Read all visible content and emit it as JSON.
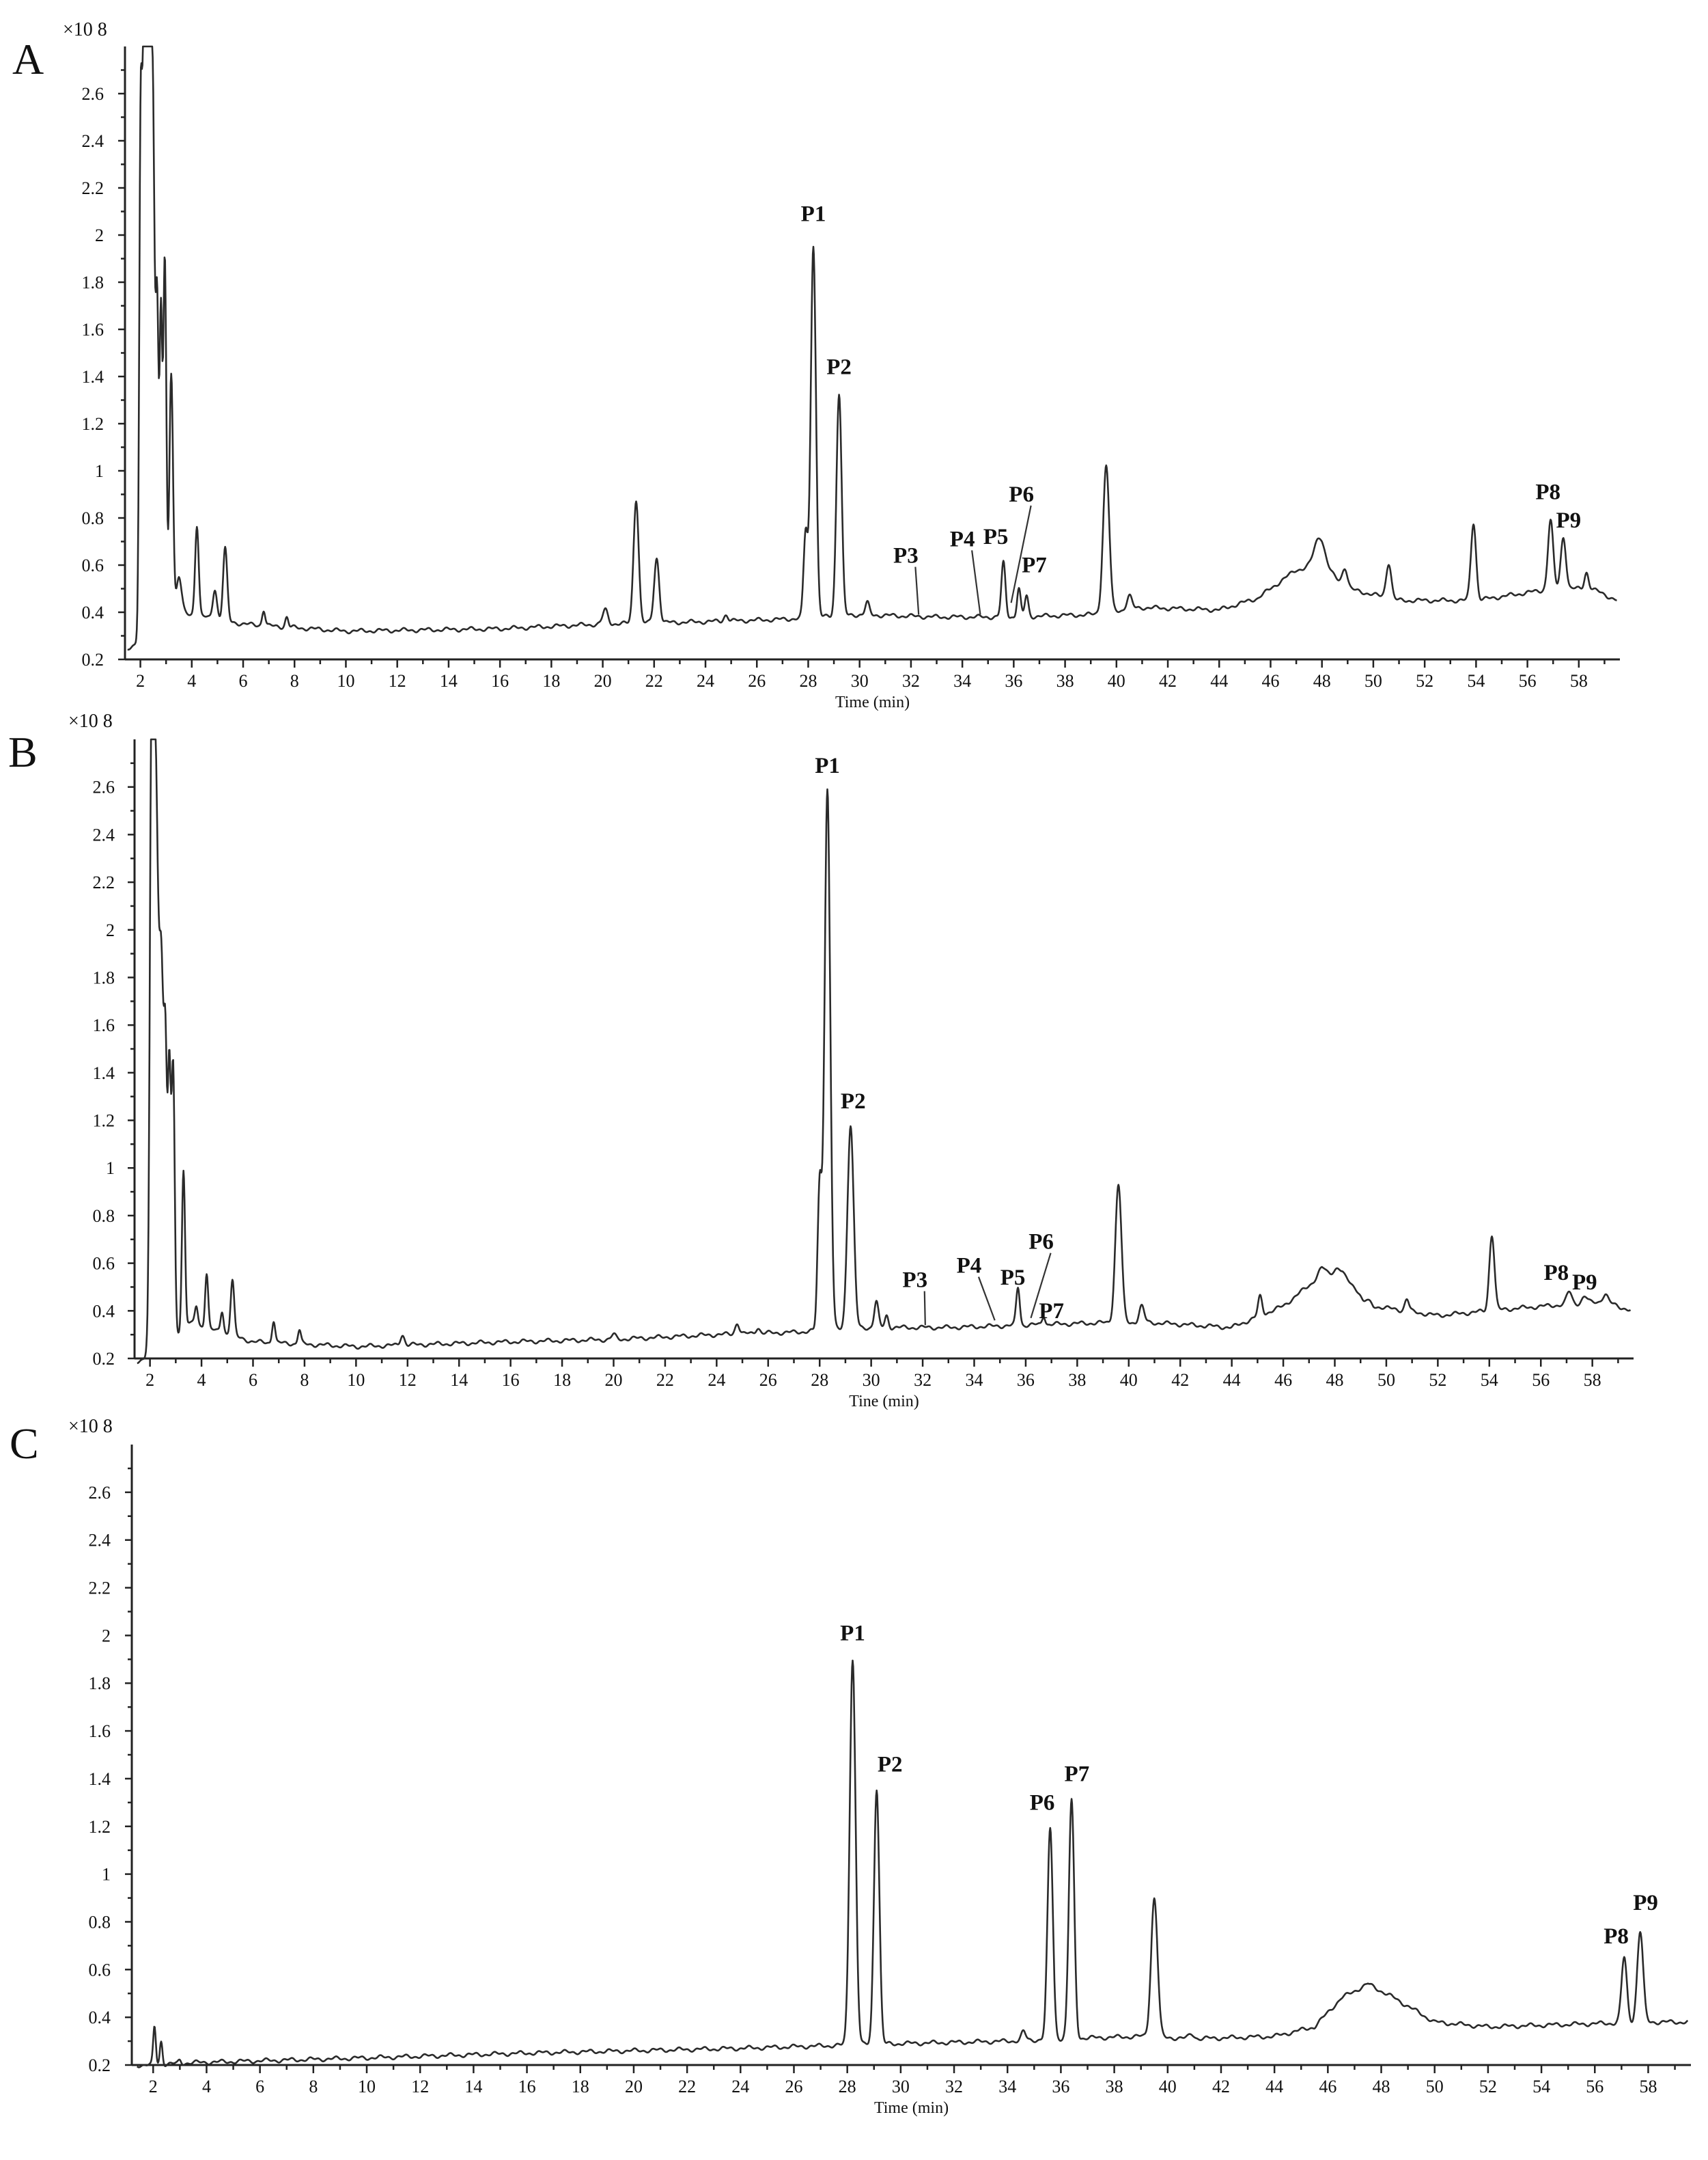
{
  "chart_data": [
    {
      "type": "line",
      "panel": "A",
      "multiplier_label": "×10 8",
      "xlabel": "Time (min)",
      "xlim": [
        1.4,
        59.6
      ],
      "ylim": [
        0.2,
        2.8
      ],
      "x_ticks": [
        2,
        4,
        6,
        8,
        10,
        12,
        14,
        16,
        18,
        20,
        22,
        24,
        26,
        28,
        30,
        32,
        34,
        36,
        38,
        40,
        42,
        44,
        46,
        48,
        50,
        52,
        54,
        56,
        58
      ],
      "y_ticks": [
        0.2,
        0.4,
        0.6,
        0.8,
        1,
        1.2,
        1.4,
        1.6,
        1.8,
        2,
        2.2,
        2.4,
        2.6
      ],
      "baseline": [
        [
          1.5,
          0.25
        ],
        [
          1.9,
          0.26
        ],
        [
          3.5,
          0.4
        ],
        [
          6,
          0.35
        ],
        [
          10,
          0.32
        ],
        [
          16,
          0.33
        ],
        [
          20,
          0.35
        ],
        [
          24,
          0.36
        ],
        [
          27,
          0.37
        ],
        [
          30,
          0.39
        ],
        [
          33,
          0.38
        ],
        [
          36,
          0.38
        ],
        [
          39,
          0.39
        ],
        [
          41,
          0.42
        ],
        [
          44,
          0.41
        ],
        [
          45.5,
          0.46
        ],
        [
          47,
          0.58
        ],
        [
          48,
          0.6
        ],
        [
          49,
          0.5
        ],
        [
          51,
          0.45
        ],
        [
          54,
          0.45
        ],
        [
          57,
          0.5
        ],
        [
          58.5,
          0.5
        ],
        [
          59.5,
          0.45
        ]
      ],
      "peaks": [
        {
          "t": 2.0,
          "h": 1.72,
          "w": 0.05
        },
        {
          "t": 2.15,
          "h": 2.8,
          "w": 0.1
        },
        {
          "t": 2.35,
          "h": 2.75,
          "w": 0.1
        },
        {
          "t": 2.5,
          "h": 1.75,
          "w": 0.06
        },
        {
          "t": 2.65,
          "h": 1.7,
          "w": 0.06
        },
        {
          "t": 2.8,
          "h": 1.6,
          "w": 0.05
        },
        {
          "t": 2.95,
          "h": 1.9,
          "w": 0.06
        },
        {
          "t": 3.2,
          "h": 1.42,
          "w": 0.07
        },
        {
          "t": 3.5,
          "h": 0.55,
          "w": 0.1
        },
        {
          "t": 4.2,
          "h": 0.77,
          "w": 0.07
        },
        {
          "t": 4.9,
          "h": 0.5,
          "w": 0.08
        },
        {
          "t": 5.3,
          "h": 0.67,
          "w": 0.08
        },
        {
          "t": 6.8,
          "h": 0.41,
          "w": 0.06
        },
        {
          "t": 7.7,
          "h": 0.38,
          "w": 0.06
        },
        {
          "t": 20.1,
          "h": 0.41,
          "w": 0.1
        },
        {
          "t": 21.3,
          "h": 0.88,
          "w": 0.1
        },
        {
          "t": 22.1,
          "h": 0.63,
          "w": 0.1
        },
        {
          "t": 24.8,
          "h": 0.39,
          "w": 0.08
        },
        {
          "t": 27.9,
          "h": 0.74,
          "w": 0.08
        },
        {
          "t": 28.2,
          "h": 1.96,
          "w": 0.1
        },
        {
          "t": 29.2,
          "h": 1.33,
          "w": 0.1
        },
        {
          "t": 30.3,
          "h": 0.44,
          "w": 0.08
        },
        {
          "t": 35.6,
          "h": 0.61,
          "w": 0.08
        },
        {
          "t": 36.2,
          "h": 0.5,
          "w": 0.07
        },
        {
          "t": 36.5,
          "h": 0.47,
          "w": 0.07
        },
        {
          "t": 39.6,
          "h": 1.02,
          "w": 0.12
        },
        {
          "t": 40.5,
          "h": 0.47,
          "w": 0.1
        },
        {
          "t": 47.9,
          "h": 0.72,
          "w": 0.2
        },
        {
          "t": 48.9,
          "h": 0.59,
          "w": 0.1
        },
        {
          "t": 50.6,
          "h": 0.61,
          "w": 0.1
        },
        {
          "t": 53.9,
          "h": 0.78,
          "w": 0.1
        },
        {
          "t": 56.9,
          "h": 0.79,
          "w": 0.1
        },
        {
          "t": 57.4,
          "h": 0.72,
          "w": 0.1
        },
        {
          "t": 58.3,
          "h": 0.57,
          "w": 0.08
        }
      ],
      "labels": [
        {
          "text": "P1",
          "t": 28.2,
          "v": 2.06
        },
        {
          "text": "P2",
          "t": 29.2,
          "v": 1.41
        },
        {
          "text": "P3",
          "t": 31.8,
          "v": 0.61,
          "tip": [
            32.3,
            0.39
          ]
        },
        {
          "text": "P4",
          "t": 34.0,
          "v": 0.68,
          "tip": [
            34.7,
            0.39
          ]
        },
        {
          "text": "P5",
          "t": 35.3,
          "v": 0.69
        },
        {
          "text": "P6",
          "t": 36.3,
          "v": 0.87,
          "tip": [
            35.9,
            0.44
          ]
        },
        {
          "text": "P7",
          "t": 36.8,
          "v": 0.57
        },
        {
          "text": "P8",
          "t": 56.8,
          "v": 0.88
        },
        {
          "text": "P9",
          "t": 57.6,
          "v": 0.76
        }
      ]
    },
    {
      "type": "line",
      "panel": "B",
      "multiplier_label": "×10 8",
      "xlabel": "Tine (min)",
      "xlim": [
        1.4,
        59.6
      ],
      "ylim": [
        0.2,
        2.8
      ],
      "x_ticks": [
        2,
        4,
        6,
        8,
        10,
        12,
        14,
        16,
        18,
        20,
        22,
        24,
        26,
        28,
        30,
        32,
        34,
        36,
        38,
        40,
        42,
        44,
        46,
        48,
        50,
        52,
        54,
        56,
        58
      ],
      "y_ticks": [
        0.2,
        0.4,
        0.6,
        0.8,
        1,
        1.2,
        1.4,
        1.6,
        1.8,
        2,
        2.2,
        2.4,
        2.6
      ],
      "baseline": [
        [
          1.5,
          0.19
        ],
        [
          2.1,
          0.2
        ],
        [
          3.5,
          0.35
        ],
        [
          6,
          0.27
        ],
        [
          10,
          0.25
        ],
        [
          16,
          0.27
        ],
        [
          20,
          0.28
        ],
        [
          24,
          0.3
        ],
        [
          27,
          0.31
        ],
        [
          30,
          0.33
        ],
        [
          33,
          0.33
        ],
        [
          36,
          0.34
        ],
        [
          39,
          0.35
        ],
        [
          41,
          0.35
        ],
        [
          44,
          0.33
        ],
        [
          46,
          0.42
        ],
        [
          47.5,
          0.55
        ],
        [
          48.3,
          0.55
        ],
        [
          49.5,
          0.42
        ],
        [
          52,
          0.38
        ],
        [
          55,
          0.41
        ],
        [
          58.5,
          0.44
        ],
        [
          59.5,
          0.4
        ]
      ],
      "peaks": [
        {
          "t": 2.05,
          "h": 1.83,
          "w": 0.06
        },
        {
          "t": 2.2,
          "h": 2.8,
          "w": 0.12
        },
        {
          "t": 2.45,
          "h": 1.6,
          "w": 0.08
        },
        {
          "t": 2.6,
          "h": 1.35,
          "w": 0.06
        },
        {
          "t": 2.75,
          "h": 1.4,
          "w": 0.06
        },
        {
          "t": 2.9,
          "h": 1.4,
          "w": 0.06
        },
        {
          "t": 3.3,
          "h": 0.99,
          "w": 0.06
        },
        {
          "t": 3.8,
          "h": 0.42,
          "w": 0.06
        },
        {
          "t": 4.2,
          "h": 0.56,
          "w": 0.06
        },
        {
          "t": 4.8,
          "h": 0.4,
          "w": 0.06
        },
        {
          "t": 5.2,
          "h": 0.53,
          "w": 0.07
        },
        {
          "t": 6.8,
          "h": 0.36,
          "w": 0.06
        },
        {
          "t": 7.8,
          "h": 0.32,
          "w": 0.06
        },
        {
          "t": 11.8,
          "h": 0.3,
          "w": 0.08
        },
        {
          "t": 20.0,
          "h": 0.3,
          "w": 0.08
        },
        {
          "t": 24.8,
          "h": 0.35,
          "w": 0.08
        },
        {
          "t": 25.6,
          "h": 0.33,
          "w": 0.08
        },
        {
          "t": 28.0,
          "h": 0.92,
          "w": 0.08
        },
        {
          "t": 28.3,
          "h": 2.59,
          "w": 0.11
        },
        {
          "t": 29.2,
          "h": 1.18,
          "w": 0.12
        },
        {
          "t": 30.2,
          "h": 0.44,
          "w": 0.08
        },
        {
          "t": 30.6,
          "h": 0.38,
          "w": 0.07
        },
        {
          "t": 35.7,
          "h": 0.5,
          "w": 0.07
        },
        {
          "t": 36.7,
          "h": 0.38,
          "w": 0.06
        },
        {
          "t": 39.6,
          "h": 0.93,
          "w": 0.12
        },
        {
          "t": 40.5,
          "h": 0.42,
          "w": 0.1
        },
        {
          "t": 45.1,
          "h": 0.46,
          "w": 0.08
        },
        {
          "t": 47.5,
          "h": 0.58,
          "w": 0.15
        },
        {
          "t": 48.1,
          "h": 0.58,
          "w": 0.15
        },
        {
          "t": 49.1,
          "h": 0.44,
          "w": 0.08
        },
        {
          "t": 50.8,
          "h": 0.45,
          "w": 0.08
        },
        {
          "t": 54.1,
          "h": 0.72,
          "w": 0.1
        },
        {
          "t": 57.1,
          "h": 0.48,
          "w": 0.1
        },
        {
          "t": 57.7,
          "h": 0.46,
          "w": 0.1
        },
        {
          "t": 58.5,
          "h": 0.47,
          "w": 0.1
        }
      ],
      "labels": [
        {
          "text": "P1",
          "t": 28.3,
          "v": 2.66
        },
        {
          "text": "P2",
          "t": 29.3,
          "v": 1.25
        },
        {
          "text": "P3",
          "t": 31.7,
          "v": 0.5,
          "tip": [
            32.1,
            0.34
          ]
        },
        {
          "text": "P4",
          "t": 33.8,
          "v": 0.56,
          "tip": [
            34.8,
            0.36
          ]
        },
        {
          "text": "P5",
          "t": 35.5,
          "v": 0.51
        },
        {
          "text": "P6",
          "t": 36.6,
          "v": 0.66,
          "tip": [
            36.2,
            0.37
          ]
        },
        {
          "text": "P7",
          "t": 37.0,
          "v": 0.37
        },
        {
          "text": "P8",
          "t": 56.6,
          "v": 0.53
        },
        {
          "text": "P9",
          "t": 57.7,
          "v": 0.49
        }
      ]
    },
    {
      "type": "line",
      "panel": "C",
      "multiplier_label": "×10 8",
      "xlabel": "Time (min)",
      "xlim": [
        1.2,
        59.6
      ],
      "ylim": [
        0.2,
        2.8
      ],
      "x_ticks": [
        2,
        4,
        6,
        8,
        10,
        12,
        14,
        16,
        18,
        20,
        22,
        24,
        26,
        28,
        30,
        32,
        34,
        36,
        38,
        40,
        42,
        44,
        46,
        48,
        50,
        52,
        54,
        56,
        58
      ],
      "y_ticks": [
        0.2,
        0.4,
        0.6,
        0.8,
        1,
        1.2,
        1.4,
        1.6,
        1.8,
        2,
        2.2,
        2.4,
        2.6
      ],
      "baseline": [
        [
          1.4,
          0.2
        ],
        [
          2.0,
          0.2
        ],
        [
          3.5,
          0.21
        ],
        [
          10,
          0.23
        ],
        [
          16,
          0.25
        ],
        [
          20,
          0.26
        ],
        [
          24,
          0.27
        ],
        [
          27,
          0.28
        ],
        [
          30,
          0.29
        ],
        [
          34,
          0.3
        ],
        [
          36,
          0.31
        ],
        [
          39,
          0.32
        ],
        [
          41,
          0.31
        ],
        [
          44,
          0.32
        ],
        [
          45.5,
          0.36
        ],
        [
          46.5,
          0.48
        ],
        [
          47.5,
          0.54
        ],
        [
          48.5,
          0.48
        ],
        [
          50,
          0.38
        ],
        [
          52,
          0.36
        ],
        [
          55,
          0.37
        ],
        [
          58,
          0.38
        ],
        [
          59.5,
          0.38
        ]
      ],
      "peaks": [
        {
          "t": 2.05,
          "h": 0.36,
          "w": 0.05
        },
        {
          "t": 2.3,
          "h": 0.3,
          "w": 0.05
        },
        {
          "t": 3.0,
          "h": 0.22,
          "w": 0.05
        },
        {
          "t": 28.2,
          "h": 1.9,
          "w": 0.11
        },
        {
          "t": 29.1,
          "h": 1.36,
          "w": 0.1
        },
        {
          "t": 34.6,
          "h": 0.34,
          "w": 0.08
        },
        {
          "t": 35.6,
          "h": 1.19,
          "w": 0.1
        },
        {
          "t": 36.4,
          "h": 1.31,
          "w": 0.1
        },
        {
          "t": 39.5,
          "h": 0.9,
          "w": 0.12
        },
        {
          "t": 40.9,
          "h": 0.33,
          "w": 0.1
        },
        {
          "t": 57.1,
          "h": 0.65,
          "w": 0.1
        },
        {
          "t": 57.7,
          "h": 0.76,
          "w": 0.11
        }
      ],
      "labels": [
        {
          "text": "P1",
          "t": 28.2,
          "v": 1.98
        },
        {
          "text": "P2",
          "t": 29.6,
          "v": 1.43
        },
        {
          "text": "P6",
          "t": 35.3,
          "v": 1.27
        },
        {
          "text": "P7",
          "t": 36.6,
          "v": 1.39
        },
        {
          "text": "P8",
          "t": 56.8,
          "v": 0.71
        },
        {
          "text": "P9",
          "t": 57.9,
          "v": 0.85
        }
      ]
    }
  ]
}
